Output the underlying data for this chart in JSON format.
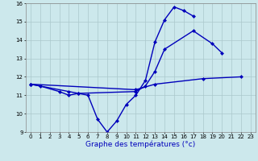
{
  "xlabel": "Graphe des températures (°c)",
  "line1_x": [
    0,
    1,
    3,
    4,
    5,
    6,
    7,
    8,
    9,
    10,
    11,
    12,
    13,
    14,
    15,
    16,
    17
  ],
  "line1_y": [
    11.6,
    11.5,
    11.2,
    11.0,
    11.1,
    11.0,
    9.7,
    9.0,
    9.6,
    10.5,
    11.0,
    11.8,
    13.9,
    15.1,
    15.8,
    15.6,
    15.3
  ],
  "line2_x": [
    0,
    4,
    5,
    11,
    12,
    13,
    14,
    17,
    19,
    20
  ],
  "line2_y": [
    11.6,
    11.2,
    11.1,
    11.2,
    11.5,
    12.3,
    13.5,
    14.5,
    13.8,
    13.3
  ],
  "line3_x": [
    0,
    11,
    13,
    18,
    22
  ],
  "line3_y": [
    11.6,
    11.3,
    11.6,
    11.9,
    12.0
  ],
  "ylim": [
    9,
    16
  ],
  "xlim_min": -0.5,
  "xlim_max": 23.5,
  "yticks": [
    9,
    10,
    11,
    12,
    13,
    14,
    15,
    16
  ],
  "xticks": [
    0,
    1,
    2,
    3,
    4,
    5,
    6,
    7,
    8,
    9,
    10,
    11,
    12,
    13,
    14,
    15,
    16,
    17,
    18,
    19,
    20,
    21,
    22,
    23
  ],
  "bg_color": "#cce8ec",
  "grid_color": "#aac8cc",
  "line_color": "#0000bb",
  "markersize": 2.5,
  "linewidth": 1.0,
  "tick_fontsize": 5.0,
  "xlabel_fontsize": 6.5
}
